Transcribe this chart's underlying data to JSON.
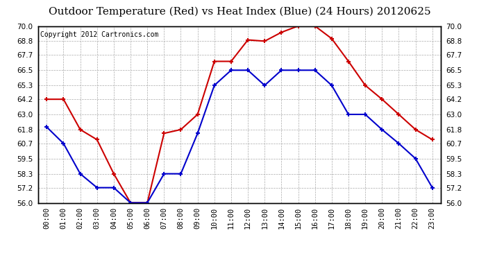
{
  "title": "Outdoor Temperature (Red) vs Heat Index (Blue) (24 Hours) 20120625",
  "copyright_text": "Copyright 2012 Cartronics.com",
  "hours": [
    "00:00",
    "01:00",
    "02:00",
    "03:00",
    "04:00",
    "05:00",
    "06:00",
    "07:00",
    "08:00",
    "09:00",
    "10:00",
    "11:00",
    "12:00",
    "13:00",
    "14:00",
    "15:00",
    "16:00",
    "17:00",
    "18:00",
    "19:00",
    "20:00",
    "21:00",
    "22:00",
    "23:00"
  ],
  "red_data": [
    64.2,
    64.2,
    61.8,
    61.0,
    58.3,
    56.0,
    56.0,
    61.5,
    61.8,
    63.0,
    67.2,
    67.2,
    68.9,
    68.8,
    69.5,
    70.0,
    70.0,
    69.0,
    67.2,
    65.3,
    64.2,
    63.0,
    61.8,
    61.0
  ],
  "blue_data": [
    62.0,
    60.7,
    58.3,
    57.2,
    57.2,
    56.0,
    56.0,
    58.3,
    58.3,
    61.5,
    65.3,
    66.5,
    66.5,
    65.3,
    66.5,
    66.5,
    66.5,
    65.3,
    63.0,
    63.0,
    61.8,
    60.7,
    59.5,
    57.2
  ],
  "red_color": "#cc0000",
  "blue_color": "#0000cc",
  "ylim_min": 56.0,
  "ylim_max": 70.0,
  "yticks": [
    56.0,
    57.2,
    58.3,
    59.5,
    60.7,
    61.8,
    63.0,
    64.2,
    65.3,
    66.5,
    67.7,
    68.8,
    70.0
  ],
  "background_color": "#ffffff",
  "grid_color": "#aaaaaa",
  "title_fontsize": 11,
  "copyright_fontsize": 7,
  "tick_label_fontsize": 7.5
}
